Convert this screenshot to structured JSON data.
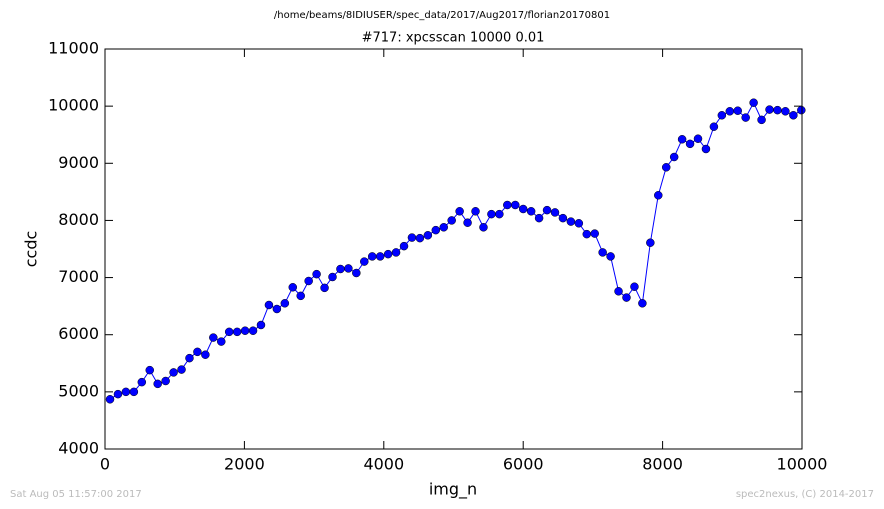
{
  "chart_data": {
    "type": "line",
    "suptitle": "/home/beams/8IDIUSER/spec_data/2017/Aug2017/florian20170801",
    "title": "#717: xpcsscan 10000 0.01",
    "xlabel": "img_n",
    "ylabel": "ccdc",
    "footer_left": "Sat Aug 05 11:57:00 2017",
    "footer_right": "spec2nexus, (C) 2014-2017",
    "color": "#0000ff",
    "marker": "circle",
    "xlim": [
      0,
      10000
    ],
    "xticks": [
      0,
      2000,
      4000,
      6000,
      8000,
      10000
    ],
    "ylim": [
      4000,
      11000
    ],
    "yticks": [
      4000,
      5000,
      6000,
      7000,
      8000,
      9000,
      10000,
      11000
    ],
    "x": [
      72,
      186,
      300,
      414,
      528,
      642,
      756,
      870,
      984,
      1098,
      1212,
      1326,
      1440,
      1554,
      1668,
      1782,
      1896,
      2010,
      2124,
      2238,
      2352,
      2466,
      2580,
      2694,
      2808,
      2922,
      3036,
      3150,
      3264,
      3378,
      3492,
      3606,
      3720,
      3834,
      3948,
      4062,
      4176,
      4290,
      4404,
      4518,
      4632,
      4746,
      4860,
      4974,
      5088,
      5202,
      5316,
      5430,
      5544,
      5658,
      5772,
      5886,
      6000,
      6114,
      6228,
      6342,
      6456,
      6570,
      6684,
      6798,
      6912,
      7026,
      7140,
      7254,
      7368,
      7482,
      7596,
      7710,
      7824,
      7938,
      8052,
      8166,
      8280,
      8394,
      8508,
      8622,
      8736,
      8850,
      8964,
      9078,
      9192,
      9306,
      9420,
      9534,
      9648,
      9762,
      9876,
      9990
    ],
    "values": [
      4870,
      4960,
      5000,
      5000,
      5170,
      5380,
      5140,
      5190,
      5340,
      5390,
      5590,
      5700,
      5650,
      5950,
      5880,
      6050,
      6050,
      6070,
      6070,
      6170,
      6520,
      6450,
      6550,
      6830,
      6680,
      6940,
      7060,
      6820,
      7010,
      7150,
      7160,
      7080,
      7280,
      7370,
      7370,
      7410,
      7440,
      7550,
      7700,
      7690,
      7740,
      7830,
      7880,
      8000,
      8160,
      7960,
      8160,
      7880,
      8110,
      8110,
      8270,
      8270,
      8200,
      8160,
      8040,
      8180,
      8140,
      8040,
      7980,
      7950,
      7760,
      7770,
      7440,
      7370,
      6760,
      6650,
      6840,
      6550,
      7610,
      8440,
      8930,
      9110,
      9420,
      9340,
      9430,
      9250,
      9640,
      9840,
      9910,
      9920,
      9800,
      10060,
      9760,
      9940,
      9930,
      9910,
      9840,
      9930
    ]
  }
}
